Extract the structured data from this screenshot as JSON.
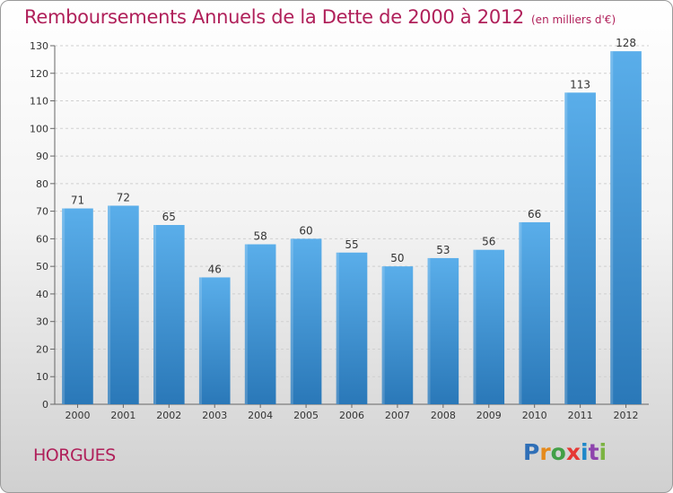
{
  "header": {
    "title": "Remboursements Annuels de la Dette de 2000 à 2012",
    "unit": "(en milliers d'€)"
  },
  "footer": {
    "place": "HORGUES",
    "logo_letters": [
      "P",
      "r",
      "o",
      "x",
      "i",
      "t",
      "i"
    ]
  },
  "colors": {
    "title": "#b0205a",
    "bar_top": "#5aaeea",
    "bar_bottom": "#2a78b8"
  },
  "chart_data": {
    "type": "bar",
    "title": "Remboursements Annuels de la Dette de 2000 à 2012",
    "xlabel": "",
    "ylabel": "",
    "categories": [
      "2000",
      "2001",
      "2002",
      "2003",
      "2004",
      "2005",
      "2006",
      "2007",
      "2008",
      "2009",
      "2010",
      "2011",
      "2012"
    ],
    "values": [
      71,
      72,
      65,
      46,
      58,
      60,
      55,
      50,
      53,
      56,
      66,
      113,
      128
    ],
    "ylim": [
      0,
      130
    ],
    "yticks": [
      0,
      10,
      20,
      30,
      40,
      50,
      60,
      70,
      80,
      90,
      100,
      110,
      120,
      130
    ],
    "grid": true,
    "data_labels": true
  }
}
